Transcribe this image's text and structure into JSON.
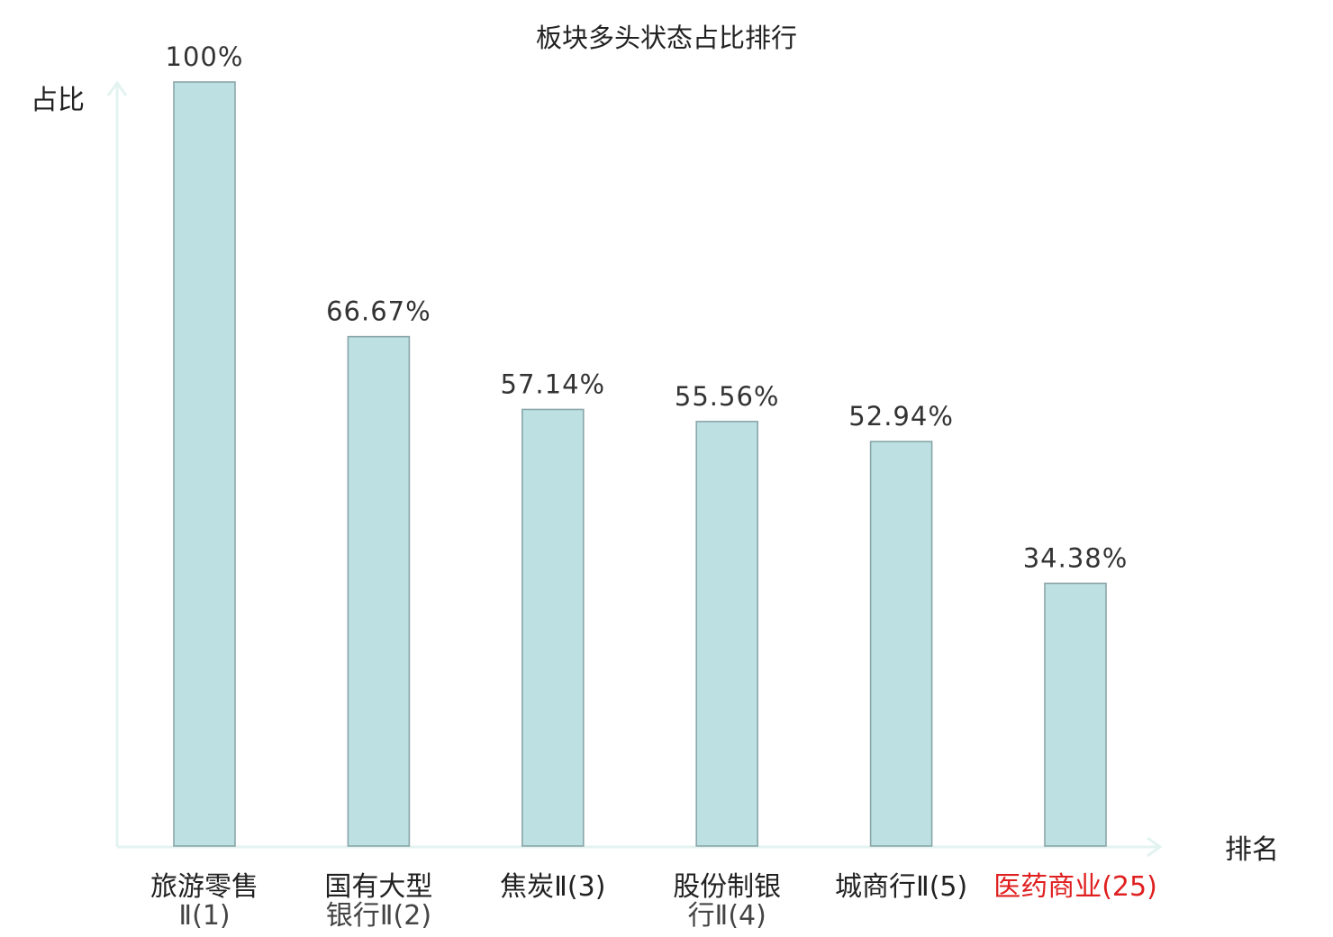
{
  "chart_data": {
    "type": "bar",
    "title": "板块多头状态占比排行",
    "ylabel": "占比",
    "xlabel": "排名",
    "ylim": [
      0,
      100
    ],
    "grid": false,
    "categories": [
      {
        "lines": [
          "旅游零售",
          "Ⅱ(1)"
        ],
        "highlight": false
      },
      {
        "lines": [
          "国有大型",
          "银行Ⅱ(2)"
        ],
        "highlight": false
      },
      {
        "lines": [
          "焦炭Ⅱ(3)"
        ],
        "highlight": false
      },
      {
        "lines": [
          "股份制银",
          "行Ⅱ(4)"
        ],
        "highlight": false
      },
      {
        "lines": [
          "城商行Ⅱ(5)"
        ],
        "highlight": false
      },
      {
        "lines": [
          "医药商业(25)"
        ],
        "highlight": true
      }
    ],
    "values": [
      100,
      66.67,
      57.14,
      55.56,
      52.94,
      34.38
    ],
    "value_labels": [
      "100%",
      "66.67%",
      "57.14%",
      "55.56%",
      "52.94%",
      "34.38%"
    ],
    "colors": {
      "bar_fill": "#bde0e3",
      "bar_stroke": "#8aa6a9",
      "axis": "#e3f3f0",
      "highlight_text": "#e02020"
    }
  }
}
